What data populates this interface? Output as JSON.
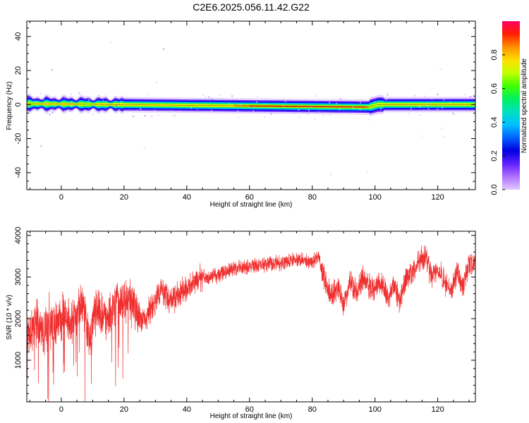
{
  "title": "C2E6.2025.056.11.42.G22",
  "colors": {
    "snr_line": "#f03030",
    "spectrum_ridge": "#ff0000",
    "colormap": [
      "#e0c8ff",
      "#b070ff",
      "#6020ff",
      "#0000e0",
      "#0060ff",
      "#00c0ff",
      "#00e0c0",
      "#00f060",
      "#40ff00",
      "#c0ff00",
      "#ffe000",
      "#ff9000",
      "#ff2000",
      "#ff0060"
    ]
  },
  "chart_data": [
    {
      "type": "heatmap",
      "title": "C2E6.2025.056.11.42.G22",
      "xlabel": "Height of straight line (km)",
      "ylabel": "Frequency (Hz)",
      "xlim": [
        -11,
        132
      ],
      "ylim": [
        -50,
        49
      ],
      "x_ticks": [
        0,
        20,
        40,
        60,
        80,
        100,
        120
      ],
      "y_ticks": [
        -40,
        -20,
        0,
        20,
        40
      ],
      "colorbar": {
        "label": "Normalized spectral amplitude",
        "range": [
          0,
          1
        ],
        "ticks": [
          "0.0",
          "0.2",
          "0.4",
          "0.6",
          "0.8"
        ]
      },
      "band": {
        "description": "Dominant energy concentrated near 0 Hz across the full height range",
        "center_freq_start": 0.5,
        "center_freq_end_before_98km": -1.5,
        "center_freq_after_100km": 0,
        "peak_region_km": [
          60,
          98
        ]
      },
      "grid": false
    },
    {
      "type": "line",
      "xlabel": "Height of straight line (km)",
      "ylabel": "SNR (10 * v/v)",
      "xlim": [
        -11,
        132
      ],
      "ylim": [
        0,
        4100
      ],
      "x_ticks": [
        0,
        20,
        40,
        60,
        80,
        100,
        120
      ],
      "y_ticks": [
        1000,
        2000,
        3000,
        4000
      ],
      "series": [
        {
          "x": [
            -11,
            -8,
            -5,
            -2,
            1,
            4,
            7,
            9,
            11,
            14,
            17,
            20,
            23,
            26,
            29,
            32,
            35,
            38,
            41,
            44,
            47,
            50,
            55,
            60,
            65,
            70,
            75,
            80,
            82,
            84,
            86,
            88,
            90,
            92,
            94,
            96,
            98,
            100,
            102,
            104,
            106,
            108,
            110,
            112,
            114,
            116,
            118,
            120,
            122,
            124,
            126,
            128,
            130,
            132
          ],
          "values": [
            1600,
            1900,
            1700,
            1800,
            2100,
            1900,
            2400,
            1400,
            2200,
            2000,
            2300,
            2500,
            2300,
            1900,
            2300,
            2700,
            2400,
            2600,
            2800,
            3000,
            3000,
            3050,
            3200,
            3250,
            3300,
            3350,
            3400,
            3350,
            3500,
            2900,
            2500,
            2800,
            2300,
            2900,
            2600,
            3000,
            2800,
            2700,
            2900,
            2500,
            2800,
            2400,
            3000,
            3100,
            3400,
            3500,
            3000,
            3200,
            2900,
            2600,
            3100,
            2800,
            3300,
            3300
          ]
        }
      ],
      "grid": false
    }
  ]
}
